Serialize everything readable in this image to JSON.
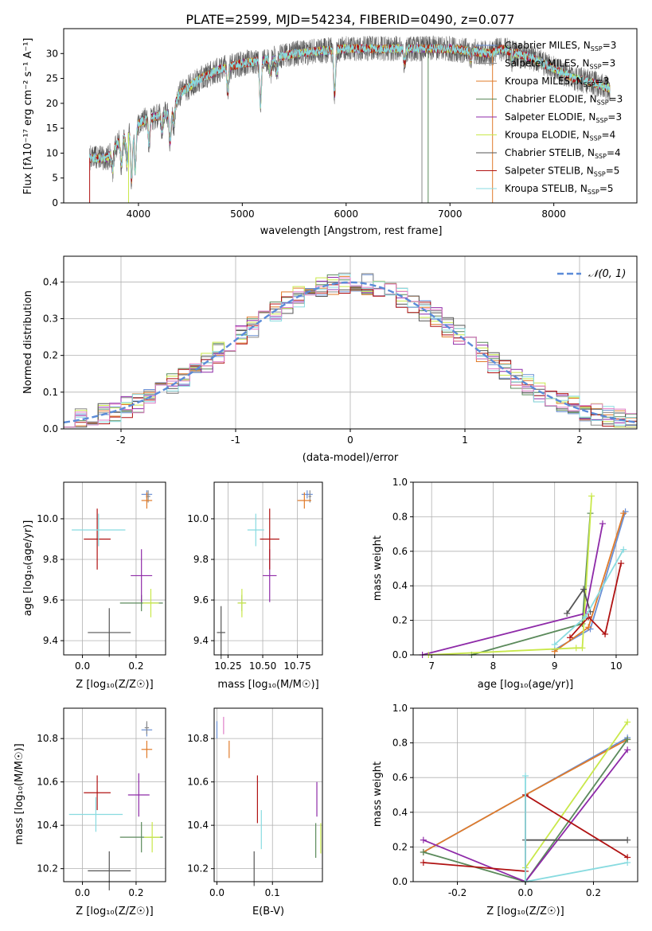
{
  "page_title": "PLATE=2599, MJD=54234, FIBERID=0490, z=0.077",
  "colors": {
    "Chabrier MILES": "#6a8fd4",
    "Salpeter MILES": "#8a8a8a",
    "Kroupa MILES": "#e07b2a",
    "Chabrier ELODIE": "#5b8a5b",
    "Salpeter ELODIE": "#8e2aa8",
    "Kroupa ELODIE": "#c9e84a",
    "Chabrier STELIB": "#555555",
    "Salpeter STELIB": "#b01212",
    "Kroupa STELIB": "#88dbe0",
    "Normal": "#5b8bd8",
    "Extra": "#e07fc8"
  },
  "chart_data": [
    {
      "type": "line",
      "title": "PLATE=2599, MJD=54234, FIBERID=0490, z=0.077",
      "xlabel": "wavelength [Angstrom, rest frame]",
      "ylabel": "Flux [fλ10⁻¹⁷ erg cm⁻² s⁻¹ A⁻¹]",
      "xlim": [
        3280,
        8800
      ],
      "ylim": [
        0,
        35
      ],
      "xticks": [
        4000,
        5000,
        6000,
        7000,
        8000
      ],
      "yticks": [
        0,
        5,
        10,
        15,
        20,
        25,
        30
      ],
      "grid": false,
      "legend_position": "right",
      "legend": [
        "Chabrier MILES, N_SSP=3",
        "Salpeter MILES, N_SSP=3",
        "Kroupa MILES, N_SSP=3",
        "Chabrier ELODIE, N_SSP=3",
        "Salpeter ELODIE, N_SSP=3",
        "Kroupa ELODIE, N_SSP=4",
        "Chabrier STELIB, N_SSP=4",
        "Salpeter STELIB, N_SSP=5",
        "Kroupa STELIB, N_SSP=5"
      ],
      "continuum": [
        [
          3530,
          9
        ],
        [
          3700,
          9
        ],
        [
          3800,
          12
        ],
        [
          3900,
          14
        ],
        [
          4000,
          16
        ],
        [
          4100,
          17
        ],
        [
          4300,
          18
        ],
        [
          4400,
          22
        ],
        [
          4600,
          25
        ],
        [
          4800,
          27
        ],
        [
          5000,
          28
        ],
        [
          5300,
          29
        ],
        [
          5500,
          30
        ],
        [
          6000,
          31
        ],
        [
          6500,
          31
        ],
        [
          7000,
          31
        ],
        [
          7400,
          30
        ],
        [
          7500,
          31
        ],
        [
          7800,
          29
        ],
        [
          8000,
          27
        ],
        [
          8200,
          25
        ],
        [
          8400,
          24
        ],
        [
          8540,
          23
        ]
      ],
      "features": [
        [
          3750,
          -4
        ],
        [
          3835,
          -5
        ],
        [
          3889,
          -6
        ],
        [
          3934,
          -10
        ],
        [
          3969,
          -9
        ],
        [
          4102,
          -5
        ],
        [
          4227,
          -3
        ],
        [
          4305,
          -6
        ],
        [
          4340,
          -4
        ],
        [
          4861,
          -5
        ],
        [
          5175,
          -9
        ],
        [
          5270,
          -3
        ],
        [
          5335,
          -3
        ],
        [
          5890,
          -9
        ],
        [
          6563,
          -3
        ],
        [
          7200,
          -2
        ],
        [
          7600,
          -2
        ]
      ],
      "noisy_series": [
        "Salpeter MILES",
        "Chabrier STELIB"
      ]
    },
    {
      "type": "histogram",
      "xlabel": "(data-model)/error",
      "ylabel": "Normed distribution",
      "xlim": [
        -2.5,
        2.5
      ],
      "ylim": [
        0,
        0.47
      ],
      "xticks": [
        -2,
        -1,
        0,
        1,
        2
      ],
      "yticks": [
        0.0,
        0.1,
        0.2,
        0.3,
        0.4
      ],
      "grid": true,
      "bin_width": 0.1,
      "legend": [
        "𝒩(0, 1)"
      ],
      "legend_position": "top-right",
      "curve": "normal(0,1)"
    },
    {
      "type": "errorbar",
      "xlabel": "Z [log₁₀(Z/Z☉)]",
      "ylabel": "age  [log₁₀(age/yr)]",
      "xlim": [
        -0.07,
        0.31
      ],
      "ylim": [
        9.33,
        10.18
      ],
      "xticks": [
        0.0,
        0.2
      ],
      "yticks": [
        9.4,
        9.6,
        9.8,
        10.0
      ],
      "grid": true,
      "points": [
        {
          "series": "Chabrier MILES",
          "x": 0.24,
          "y": 10.12,
          "xerr": 0.02,
          "yerr": 0.02
        },
        {
          "series": "Salpeter MILES",
          "x": 0.245,
          "y": 10.11,
          "xerr": 0.008,
          "yerr": 0.03
        },
        {
          "series": "Kroupa MILES",
          "x": 0.24,
          "y": 10.09,
          "xerr": 0.02,
          "yerr": 0.04
        },
        {
          "series": "Chabrier ELODIE",
          "x": 0.22,
          "y": 9.585,
          "xerr": 0.08,
          "yerr": 0.04
        },
        {
          "series": "Salpeter ELODIE",
          "x": 0.22,
          "y": 9.72,
          "xerr": 0.04,
          "yerr": 0.13
        },
        {
          "series": "Kroupa ELODIE",
          "x": 0.255,
          "y": 9.585,
          "xerr": 0.03,
          "yerr": 0.07
        },
        {
          "series": "Chabrier STELIB",
          "x": 0.1,
          "y": 9.44,
          "xerr": 0.08,
          "yerr": 0.12
        },
        {
          "series": "Salpeter STELIB",
          "x": 0.055,
          "y": 9.9,
          "xerr": 0.05,
          "yerr": 0.15
        },
        {
          "series": "Kroupa STELIB",
          "x": 0.06,
          "y": 9.945,
          "xerr": 0.1,
          "yerr": 0.08
        }
      ]
    },
    {
      "type": "errorbar",
      "xlabel": "mass [log₁₀(M/M☉)]",
      "ylabel": "",
      "xlim": [
        10.15,
        10.93
      ],
      "ylim": [
        9.33,
        10.18
      ],
      "xticks": [
        10.25,
        10.5,
        10.75
      ],
      "yticks": [
        9.4,
        9.6,
        9.8,
        10.0
      ],
      "grid": true,
      "points": [
        {
          "series": "Chabrier MILES",
          "x": 10.82,
          "y": 10.12,
          "xerr": 0.04,
          "yerr": 0.02
        },
        {
          "series": "Salpeter MILES",
          "x": 10.84,
          "y": 10.11,
          "xerr": 0.01,
          "yerr": 0.03
        },
        {
          "series": "Kroupa MILES",
          "x": 10.8,
          "y": 10.09,
          "xerr": 0.05,
          "yerr": 0.04
        },
        {
          "series": "Chabrier ELODIE",
          "x": 10.35,
          "y": 9.585,
          "xerr": 0.03,
          "yerr": 0.04
        },
        {
          "series": "Salpeter ELODIE",
          "x": 10.55,
          "y": 9.72,
          "xerr": 0.05,
          "yerr": 0.13
        },
        {
          "series": "Kroupa ELODIE",
          "x": 10.35,
          "y": 9.585,
          "xerr": 0.03,
          "yerr": 0.07
        },
        {
          "series": "Chabrier STELIB",
          "x": 10.2,
          "y": 9.44,
          "xerr": 0.03,
          "yerr": 0.13
        },
        {
          "series": "Salpeter STELIB",
          "x": 10.55,
          "y": 9.9,
          "xerr": 0.07,
          "yerr": 0.15
        },
        {
          "series": "Kroupa STELIB",
          "x": 10.45,
          "y": 9.945,
          "xerr": 0.06,
          "yerr": 0.08
        }
      ]
    },
    {
      "type": "line",
      "xlabel": "age  [log₁₀(age/yr)]",
      "ylabel": "mass weight",
      "xlim": [
        6.7,
        10.35
      ],
      "ylim": [
        0,
        1
      ],
      "xticks": [
        7,
        8,
        9,
        10
      ],
      "yticks": [
        0.0,
        0.2,
        0.4,
        0.6,
        0.8,
        1.0
      ],
      "grid": true,
      "series": [
        {
          "name": "Chabrier MILES",
          "x": [
            9.0,
            9.58,
            10.15
          ],
          "y": [
            0.03,
            0.15,
            0.83
          ]
        },
        {
          "name": "Kroupa MILES",
          "x": [
            9.0,
            9.55,
            10.12
          ],
          "y": [
            0.02,
            0.16,
            0.82
          ]
        },
        {
          "name": "Chabrier ELODIE",
          "x": [
            7.65,
            9.45,
            9.58
          ],
          "y": [
            0.0,
            0.18,
            0.82
          ]
        },
        {
          "name": "Salpeter ELODIE",
          "x": [
            6.85,
            9.5,
            9.78
          ],
          "y": [
            0.0,
            0.24,
            0.76
          ]
        },
        {
          "name": "Kroupa ELODIE",
          "x": [
            6.95,
            9.35,
            9.45,
            9.6
          ],
          "y": [
            0.0,
            0.04,
            0.04,
            0.92
          ]
        },
        {
          "name": "Chabrier STELIB",
          "x": [
            9.2,
            9.47,
            9.58
          ],
          "y": [
            0.24,
            0.38,
            0.25
          ]
        },
        {
          "name": "Salpeter STELIB",
          "x": [
            9.25,
            9.55,
            9.82,
            10.08
          ],
          "y": [
            0.1,
            0.22,
            0.12,
            0.53
          ]
        },
        {
          "name": "Kroupa STELIB",
          "x": [
            9.0,
            9.5,
            10.12
          ],
          "y": [
            0.06,
            0.22,
            0.61
          ]
        }
      ]
    },
    {
      "type": "errorbar",
      "xlabel": "Z [log₁₀(Z/Z☉)]",
      "ylabel": "mass [log₁₀(M/M☉)]",
      "xlim": [
        -0.07,
        0.31
      ],
      "ylim": [
        10.14,
        10.94
      ],
      "xticks": [
        0.0,
        0.2
      ],
      "yticks": [
        10.2,
        10.4,
        10.6,
        10.8
      ],
      "grid": true,
      "points": [
        {
          "series": "Chabrier MILES",
          "x": 0.24,
          "y": 10.84,
          "xerr": 0.02,
          "yerr": 0.03
        },
        {
          "series": "Salpeter MILES",
          "x": 0.24,
          "y": 10.85,
          "xerr": 0.008,
          "yerr": 0.03
        },
        {
          "series": "Kroupa MILES",
          "x": 0.24,
          "y": 10.75,
          "xerr": 0.02,
          "yerr": 0.04
        },
        {
          "series": "Chabrier ELODIE",
          "x": 0.22,
          "y": 10.345,
          "xerr": 0.08,
          "yerr": 0.07
        },
        {
          "series": "Salpeter ELODIE",
          "x": 0.21,
          "y": 10.54,
          "xerr": 0.04,
          "yerr": 0.1
        },
        {
          "series": "Kroupa ELODIE",
          "x": 0.26,
          "y": 10.345,
          "xerr": 0.03,
          "yerr": 0.07
        },
        {
          "series": "Chabrier STELIB",
          "x": 0.1,
          "y": 10.19,
          "xerr": 0.08,
          "yerr": 0.09
        },
        {
          "series": "Salpeter STELIB",
          "x": 0.055,
          "y": 10.55,
          "xerr": 0.05,
          "yerr": 0.08
        },
        {
          "series": "Kroupa STELIB",
          "x": 0.05,
          "y": 10.45,
          "xerr": 0.1,
          "yerr": 0.08
        }
      ]
    },
    {
      "type": "errorbar",
      "xlabel": "E(B-V)",
      "ylabel": "",
      "xlim": [
        -0.005,
        0.19
      ],
      "ylim": [
        10.14,
        10.94
      ],
      "xticks": [
        0.0,
        0.1
      ],
      "yticks": [
        10.2,
        10.4,
        10.6,
        10.8
      ],
      "grid": true,
      "points": [
        {
          "series": "Chabrier MILES",
          "x": 0.0,
          "y": 10.84,
          "xerr": 0.0,
          "yerr": 0.04
        },
        {
          "series": "Extra",
          "x": 0.012,
          "y": 10.86,
          "xerr": 0.0,
          "yerr": 0.04
        },
        {
          "series": "Kroupa MILES",
          "x": 0.022,
          "y": 10.75,
          "xerr": 0.0,
          "yerr": 0.04
        },
        {
          "series": "Chabrier ELODIE",
          "x": 0.178,
          "y": 10.33,
          "xerr": 0.0,
          "yerr": 0.08
        },
        {
          "series": "Salpeter ELODIE",
          "x": 0.18,
          "y": 10.52,
          "xerr": 0.0,
          "yerr": 0.08
        },
        {
          "series": "Kroupa ELODIE",
          "x": 0.187,
          "y": 10.34,
          "xerr": 0.0,
          "yerr": 0.07
        },
        {
          "series": "Chabrier STELIB",
          "x": 0.067,
          "y": 10.2,
          "xerr": 0.0,
          "yerr": 0.08
        },
        {
          "series": "Salpeter STELIB",
          "x": 0.073,
          "y": 10.52,
          "xerr": 0.0,
          "yerr": 0.11
        },
        {
          "series": "Kroupa STELIB",
          "x": 0.08,
          "y": 10.38,
          "xerr": 0.0,
          "yerr": 0.09
        }
      ]
    },
    {
      "type": "line",
      "xlabel": "Z [log₁₀(Z/Z☉)]",
      "ylabel": "mass weight",
      "xlim": [
        -0.33,
        0.33
      ],
      "ylim": [
        0,
        1
      ],
      "xticks": [
        -0.2,
        0.0,
        0.2
      ],
      "yticks": [
        0.0,
        0.2,
        0.4,
        0.6,
        0.8,
        1.0
      ],
      "grid": true,
      "series": [
        {
          "name": "Chabrier MILES",
          "x": [
            -0.3,
            0.0,
            0.3
          ],
          "y": [
            0.17,
            0.5,
            0.83
          ]
        },
        {
          "name": "Kroupa MILES",
          "x": [
            -0.3,
            0.0,
            0.3
          ],
          "y": [
            0.17,
            0.5,
            0.82
          ]
        },
        {
          "name": "Chabrier ELODIE",
          "x": [
            -0.3,
            0.0,
            0.3
          ],
          "y": [
            0.17,
            0.0,
            0.82
          ]
        },
        {
          "name": "Salpeter ELODIE",
          "x": [
            -0.3,
            0.0,
            0.3
          ],
          "y": [
            0.24,
            0.0,
            0.76
          ]
        },
        {
          "name": "Kroupa ELODIE",
          "x": [
            0.0,
            0.0,
            0.3
          ],
          "y": [
            0.0,
            0.08,
            0.92
          ]
        },
        {
          "name": "Chabrier STELIB",
          "x": [
            0.0,
            0.3
          ],
          "y": [
            0.24,
            0.24
          ]
        },
        {
          "name": "Salpeter STELIB",
          "x": [
            -0.3,
            0.0,
            0.0,
            0.3
          ],
          "y": [
            0.11,
            0.06,
            0.5,
            0.14
          ]
        },
        {
          "name": "Kroupa STELIB",
          "x": [
            0.0,
            0.0,
            0.3
          ],
          "y": [
            0.61,
            0.0,
            0.11
          ]
        }
      ]
    }
  ]
}
